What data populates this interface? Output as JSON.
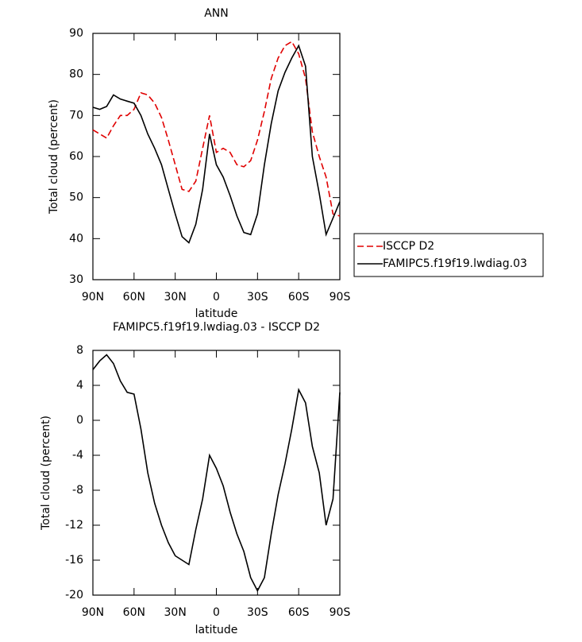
{
  "chart_data": [
    {
      "type": "line",
      "title": "ANN",
      "x_label": "latitude",
      "y_label": "Total cloud (percent)",
      "x": [
        90,
        85,
        80,
        75,
        70,
        65,
        60,
        55,
        50,
        45,
        40,
        35,
        30,
        25,
        20,
        15,
        10,
        5,
        0,
        -5,
        -10,
        -15,
        -20,
        -25,
        -30,
        -35,
        -40,
        -45,
        -50,
        -55,
        -60,
        -65,
        -70,
        -75,
        -80,
        -85,
        -90
      ],
      "series": [
        {
          "name": "ISCCP D2",
          "color": "#e00000",
          "dash": true,
          "values": [
            66.5,
            65.5,
            64.5,
            67.5,
            70,
            70,
            71.5,
            75.5,
            75,
            73,
            69.5,
            64,
            58,
            52,
            51.5,
            54,
            62,
            70,
            61,
            62,
            61,
            58,
            57.5,
            59,
            64,
            71,
            79,
            84,
            87,
            88,
            85,
            79,
            66,
            60,
            55,
            46,
            45.5
          ]
        },
        {
          "name": "FAMIPC5.f19f19.lwdiag.03",
          "color": "#000000",
          "dash": false,
          "values": [
            72,
            71.5,
            72.2,
            75,
            74,
            73.5,
            73,
            70,
            65.5,
            62,
            58,
            52,
            46,
            40.5,
            39,
            43.5,
            52,
            65.5,
            58,
            55,
            50.5,
            45.5,
            41.5,
            41,
            46,
            58,
            68,
            76,
            80.5,
            84,
            87,
            82,
            60,
            51,
            41,
            45,
            49
          ]
        }
      ],
      "xlim": [
        90,
        -90
      ],
      "xticks": [
        {
          "value": 90,
          "label": "90N"
        },
        {
          "value": 60,
          "label": "60N"
        },
        {
          "value": 30,
          "label": "30N"
        },
        0,
        {
          "value": -30,
          "label": "30S"
        },
        {
          "value": -60,
          "label": "60S"
        },
        {
          "value": -90,
          "label": "90S"
        }
      ],
      "ylim": [
        30,
        90
      ],
      "yticks": [
        30,
        40,
        50,
        60,
        70,
        80,
        90
      ],
      "legend": "right"
    },
    {
      "type": "line",
      "title": "FAMIPC5.f19f19.lwdiag.03 - ISCCP D2",
      "x_label": "latitude",
      "y_label": "Total cloud (percent)",
      "x": [
        90,
        85,
        80,
        75,
        70,
        65,
        60,
        55,
        50,
        45,
        40,
        35,
        30,
        25,
        20,
        15,
        10,
        5,
        0,
        -5,
        -10,
        -15,
        -20,
        -25,
        -30,
        -35,
        -40,
        -45,
        -50,
        -55,
        -60,
        -65,
        -70,
        -75,
        -80,
        -85,
        -90
      ],
      "series": [
        {
          "color": "#000000",
          "dash": false,
          "values": [
            5.8,
            6.8,
            7.5,
            6.5,
            4.5,
            3.2,
            3,
            -1,
            -6,
            -9.5,
            -12,
            -14,
            -15.5,
            -16,
            -16.5,
            -12.5,
            -9,
            -4,
            -5.5,
            -7.5,
            -10.5,
            -13,
            -15,
            -18,
            -19.5,
            -18,
            -13,
            -8.5,
            -5,
            -1,
            3.5,
            2,
            -3,
            -6,
            -12,
            -9,
            3.2
          ]
        }
      ],
      "xlim": [
        90,
        -90
      ],
      "xticks": [
        {
          "value": 90,
          "label": "90N"
        },
        {
          "value": 60,
          "label": "60N"
        },
        {
          "value": 30,
          "label": "30N"
        },
        0,
        {
          "value": -30,
          "label": "30S"
        },
        {
          "value": -60,
          "label": "60S"
        },
        {
          "value": -90,
          "label": "90S"
        }
      ],
      "ylim": [
        -20,
        8
      ],
      "yticks": [
        -20,
        -16,
        -12,
        -8,
        -4,
        0,
        4,
        8
      ]
    }
  ]
}
